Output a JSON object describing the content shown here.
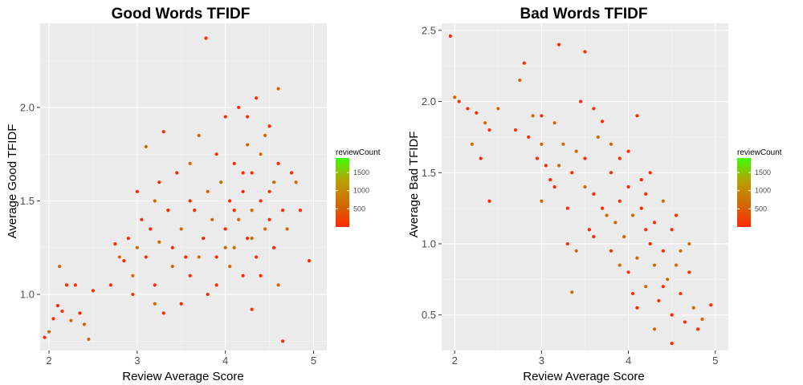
{
  "chart_data": [
    {
      "type": "scatter",
      "title": "Good Words TFIDF",
      "xlabel": "Review Average Score",
      "ylabel": "Average Good TFIDF",
      "xlim": [
        1.9,
        5.15
      ],
      "ylim": [
        0.7,
        2.45
      ],
      "x_ticks": [
        2,
        3,
        4,
        5
      ],
      "y_ticks": [
        1.0,
        1.5,
        2.0
      ],
      "grid": true,
      "legend": {
        "title": "reviewCount",
        "placement": "right",
        "range": [
          0,
          1900
        ],
        "ticks": [
          500,
          1000,
          1500
        ],
        "colors": [
          "#ff2a00",
          "#d06a00",
          "#b8a000",
          "#3cff00"
        ]
      },
      "points": [
        [
          1.95,
          0.77
        ],
        [
          2.0,
          0.8
        ],
        [
          2.05,
          0.87
        ],
        [
          2.1,
          0.94
        ],
        [
          2.12,
          1.15
        ],
        [
          2.15,
          0.91
        ],
        [
          2.2,
          1.05
        ],
        [
          2.25,
          0.86
        ],
        [
          2.3,
          1.05
        ],
        [
          2.35,
          0.9
        ],
        [
          2.45,
          0.76
        ],
        [
          2.5,
          1.02
        ],
        [
          2.4,
          0.84
        ],
        [
          2.7,
          1.05
        ],
        [
          2.75,
          1.27
        ],
        [
          2.8,
          1.2
        ],
        [
          2.85,
          1.18
        ],
        [
          2.9,
          1.3
        ],
        [
          2.95,
          1.1
        ],
        [
          2.95,
          1.0
        ],
        [
          3.0,
          1.55
        ],
        [
          3.0,
          1.25
        ],
        [
          3.05,
          1.4
        ],
        [
          3.1,
          1.79
        ],
        [
          3.1,
          1.2
        ],
        [
          3.15,
          1.35
        ],
        [
          3.2,
          1.5
        ],
        [
          3.2,
          1.05
        ],
        [
          3.25,
          1.6
        ],
        [
          3.25,
          1.28
        ],
        [
          3.3,
          1.87
        ],
        [
          3.35,
          1.45
        ],
        [
          3.4,
          1.15
        ],
        [
          3.45,
          1.65
        ],
        [
          3.5,
          1.35
        ],
        [
          3.5,
          0.95
        ],
        [
          3.55,
          1.2
        ],
        [
          3.6,
          1.7
        ],
        [
          3.6,
          1.1
        ],
        [
          3.65,
          1.45
        ],
        [
          3.7,
          1.85
        ],
        [
          3.75,
          1.3
        ],
        [
          3.78,
          2.37
        ],
        [
          3.8,
          1.55
        ],
        [
          3.8,
          1.0
        ],
        [
          3.85,
          1.4
        ],
        [
          3.9,
          1.75
        ],
        [
          3.9,
          1.2
        ],
        [
          3.95,
          1.6
        ],
        [
          4.0,
          1.35
        ],
        [
          4.0,
          1.95
        ],
        [
          4.05,
          1.15
        ],
        [
          4.05,
          1.5
        ],
        [
          4.1,
          1.7
        ],
        [
          4.1,
          1.25
        ],
        [
          4.15,
          2.0
        ],
        [
          4.15,
          1.4
        ],
        [
          4.2,
          1.55
        ],
        [
          4.2,
          1.1
        ],
        [
          4.25,
          1.8
        ],
        [
          4.25,
          1.3
        ],
        [
          4.3,
          1.65
        ],
        [
          4.3,
          1.45
        ],
        [
          4.35,
          2.05
        ],
        [
          4.35,
          1.2
        ],
        [
          4.4,
          1.75
        ],
        [
          4.4,
          1.5
        ],
        [
          4.45,
          1.35
        ],
        [
          4.5,
          1.9
        ],
        [
          4.5,
          1.55
        ],
        [
          4.55,
          1.6
        ],
        [
          4.55,
          1.25
        ],
        [
          4.6,
          1.7
        ],
        [
          4.6,
          2.1
        ],
        [
          4.65,
          1.45
        ],
        [
          4.65,
          0.75
        ],
        [
          4.7,
          1.35
        ],
        [
          4.75,
          1.65
        ],
        [
          4.8,
          1.6
        ],
        [
          4.85,
          1.45
        ],
        [
          4.95,
          1.18
        ],
        [
          4.6,
          1.05
        ],
        [
          4.3,
          0.92
        ],
        [
          3.3,
          0.9
        ],
        [
          3.2,
          0.95
        ],
        [
          3.4,
          1.25
        ],
        [
          3.6,
          1.5
        ],
        [
          3.7,
          1.2
        ],
        [
          3.9,
          1.05
        ],
        [
          4.0,
          1.25
        ],
        [
          4.1,
          1.45
        ],
        [
          4.2,
          1.65
        ],
        [
          4.3,
          1.3
        ],
        [
          4.4,
          1.1
        ],
        [
          4.5,
          1.4
        ],
        [
          4.45,
          1.85
        ],
        [
          4.25,
          1.95
        ]
      ]
    },
    {
      "type": "scatter",
      "title": "Bad Words TFIDF",
      "xlabel": "Review Average Score",
      "ylabel": "Average Bad TFIDF",
      "xlim": [
        1.85,
        5.15
      ],
      "ylim": [
        0.25,
        2.55
      ],
      "x_ticks": [
        2,
        3,
        4,
        5
      ],
      "y_ticks": [
        0.5,
        1.0,
        1.5,
        2.0,
        2.5
      ],
      "grid": true,
      "legend": {
        "title": "reviewCount",
        "placement": "right",
        "range": [
          0,
          1900
        ],
        "ticks": [
          500,
          1000,
          1500
        ],
        "colors": [
          "#ff2a00",
          "#d06a00",
          "#b8a000",
          "#3cff00"
        ]
      },
      "points": [
        [
          1.95,
          2.46
        ],
        [
          2.0,
          2.03
        ],
        [
          2.05,
          2.0
        ],
        [
          2.15,
          1.95
        ],
        [
          2.2,
          1.7
        ],
        [
          2.25,
          1.92
        ],
        [
          2.3,
          1.6
        ],
        [
          2.35,
          1.85
        ],
        [
          2.4,
          1.8
        ],
        [
          2.4,
          1.3
        ],
        [
          2.5,
          1.95
        ],
        [
          2.7,
          1.8
        ],
        [
          2.75,
          2.15
        ],
        [
          2.8,
          2.27
        ],
        [
          2.85,
          1.75
        ],
        [
          2.9,
          1.9
        ],
        [
          2.95,
          1.6
        ],
        [
          3.0,
          1.9
        ],
        [
          3.0,
          1.3
        ],
        [
          3.05,
          1.55
        ],
        [
          3.1,
          1.45
        ],
        [
          3.15,
          1.85
        ],
        [
          3.2,
          2.4
        ],
        [
          3.25,
          1.7
        ],
        [
          3.3,
          1.25
        ],
        [
          3.35,
          1.5
        ],
        [
          3.4,
          1.65
        ],
        [
          3.45,
          2.0
        ],
        [
          3.5,
          2.35
        ],
        [
          3.5,
          1.4
        ],
        [
          3.55,
          1.1
        ],
        [
          3.6,
          1.35
        ],
        [
          3.65,
          1.75
        ],
        [
          3.7,
          1.86
        ],
        [
          3.75,
          1.2
        ],
        [
          3.8,
          1.5
        ],
        [
          3.8,
          0.95
        ],
        [
          3.85,
          1.15
        ],
        [
          3.9,
          1.6
        ],
        [
          3.9,
          1.3
        ],
        [
          3.95,
          1.05
        ],
        [
          4.0,
          1.4
        ],
        [
          4.0,
          0.8
        ],
        [
          4.05,
          1.2
        ],
        [
          4.1,
          1.9
        ],
        [
          4.1,
          0.9
        ],
        [
          4.15,
          1.25
        ],
        [
          4.2,
          1.1
        ],
        [
          4.2,
          0.7
        ],
        [
          4.25,
          1.5
        ],
        [
          4.25,
          1.0
        ],
        [
          4.3,
          0.85
        ],
        [
          4.3,
          1.15
        ],
        [
          4.35,
          0.6
        ],
        [
          4.4,
          1.3
        ],
        [
          4.4,
          0.95
        ],
        [
          4.45,
          0.75
        ],
        [
          4.5,
          1.1
        ],
        [
          4.5,
          0.5
        ],
        [
          4.55,
          0.85
        ],
        [
          4.55,
          1.2
        ],
        [
          4.6,
          0.65
        ],
        [
          4.6,
          0.95
        ],
        [
          4.65,
          0.45
        ],
        [
          4.7,
          0.8
        ],
        [
          4.75,
          0.55
        ],
        [
          4.8,
          0.4
        ],
        [
          4.85,
          0.47
        ],
        [
          4.95,
          0.57
        ],
        [
          4.5,
          0.3
        ],
        [
          3.4,
          0.95
        ],
        [
          3.6,
          1.05
        ],
        [
          3.7,
          1.25
        ],
        [
          3.9,
          0.85
        ],
        [
          4.05,
          0.65
        ],
        [
          4.15,
          1.45
        ],
        [
          4.3,
          0.4
        ],
        [
          3.3,
          1.0
        ],
        [
          3.2,
          1.55
        ],
        [
          3.5,
          1.6
        ],
        [
          4.0,
          1.65
        ],
        [
          3.35,
          0.66
        ],
        [
          4.1,
          0.55
        ],
        [
          4.4,
          0.7
        ],
        [
          3.8,
          1.7
        ],
        [
          3.6,
          1.95
        ],
        [
          4.2,
          1.35
        ],
        [
          3.0,
          1.7
        ],
        [
          3.15,
          1.4
        ],
        [
          4.7,
          1.0
        ]
      ]
    }
  ]
}
